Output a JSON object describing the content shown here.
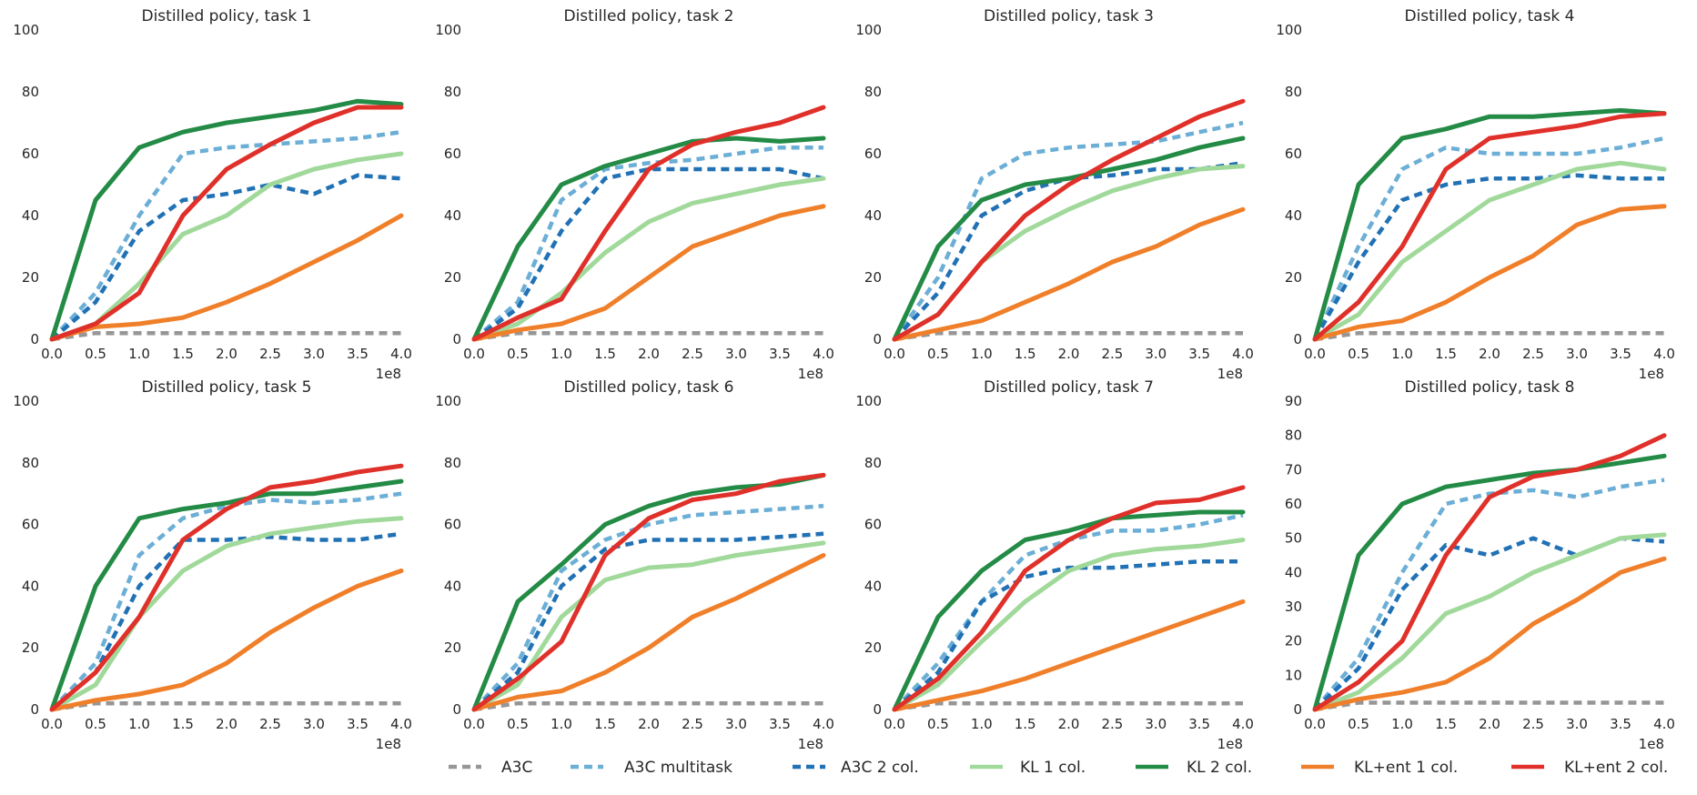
{
  "legend": {
    "placement": "bottom-right",
    "items": [
      {
        "label": "A3C",
        "color": "#969696",
        "dash": true,
        "thick": true
      },
      {
        "label": "A3C multitask",
        "color": "#6baed6",
        "dash": true,
        "thick": true
      },
      {
        "label": "A3C 2 col.",
        "color": "#2171b5",
        "dash": true,
        "thick": true
      },
      {
        "label": "KL 1 col.",
        "color": "#a1d99b",
        "dash": false,
        "thick": true
      },
      {
        "label": "KL 2 col.",
        "color": "#238b45",
        "dash": false,
        "thick": true
      },
      {
        "label": "KL+ent 1 col.",
        "color": "#f07f2a",
        "dash": false,
        "thick": true
      },
      {
        "label": "KL+ent 2 col.",
        "color": "#e0302a",
        "dash": false,
        "thick": true
      }
    ]
  },
  "chart_data": [
    {
      "type": "line",
      "title": "Distilled policy, task 1",
      "xlim": [
        0,
        4.0
      ],
      "ylim": [
        0,
        100
      ],
      "x_offset_label": "1e8",
      "x": [
        0,
        0.5,
        1.0,
        1.5,
        2.0,
        2.5,
        3.0,
        3.5,
        4.0
      ],
      "xticks": [
        "0.0",
        "0.5",
        "1.0",
        "1.5",
        "2.0",
        "2.5",
        "3.0",
        "3.5",
        "4.0"
      ],
      "yticks": [
        "0",
        "20",
        "40",
        "60",
        "80",
        "100"
      ],
      "series": [
        {
          "name": "A3C",
          "values": [
            0,
            2,
            2,
            2,
            2,
            2,
            2,
            2,
            2
          ]
        },
        {
          "name": "A3C multitask",
          "values": [
            0,
            15,
            40,
            60,
            62,
            63,
            64,
            65,
            67
          ]
        },
        {
          "name": "A3C 2 col.",
          "values": [
            0,
            12,
            35,
            45,
            47,
            50,
            47,
            53,
            52
          ]
        },
        {
          "name": "KL 1 col.",
          "values": [
            0,
            5,
            18,
            34,
            40,
            50,
            55,
            58,
            60
          ]
        },
        {
          "name": "KL 2 col.",
          "values": [
            0,
            45,
            62,
            67,
            70,
            72,
            74,
            77,
            76
          ]
        },
        {
          "name": "KL+ent 1 col.",
          "values": [
            0,
            4,
            5,
            7,
            12,
            18,
            25,
            32,
            40
          ]
        },
        {
          "name": "KL+ent 2 col.",
          "values": [
            0,
            5,
            15,
            40,
            55,
            63,
            70,
            75,
            75
          ]
        }
      ]
    },
    {
      "type": "line",
      "title": "Distilled policy, task 2",
      "xlim": [
        0,
        4.0
      ],
      "ylim": [
        0,
        100
      ],
      "x_offset_label": "1e8",
      "x": [
        0,
        0.5,
        1.0,
        1.5,
        2.0,
        2.5,
        3.0,
        3.5,
        4.0
      ],
      "xticks": [
        "0.0",
        "0.5",
        "1.0",
        "1.5",
        "2.0",
        "2.5",
        "3.0",
        "3.5",
        "4.0"
      ],
      "yticks": [
        "0",
        "20",
        "40",
        "60",
        "80",
        "100"
      ],
      "series": [
        {
          "name": "A3C",
          "values": [
            0,
            2,
            2,
            2,
            2,
            2,
            2,
            2,
            2
          ]
        },
        {
          "name": "A3C multitask",
          "values": [
            0,
            12,
            45,
            55,
            57,
            58,
            60,
            62,
            62
          ]
        },
        {
          "name": "A3C 2 col.",
          "values": [
            0,
            10,
            35,
            52,
            55,
            55,
            55,
            55,
            52
          ]
        },
        {
          "name": "KL 1 col.",
          "values": [
            0,
            5,
            15,
            28,
            38,
            44,
            47,
            50,
            52
          ]
        },
        {
          "name": "KL 2 col.",
          "values": [
            0,
            30,
            50,
            56,
            60,
            64,
            65,
            64,
            65
          ]
        },
        {
          "name": "KL+ent 1 col.",
          "values": [
            0,
            3,
            5,
            10,
            20,
            30,
            35,
            40,
            43
          ]
        },
        {
          "name": "KL+ent 2 col.",
          "values": [
            0,
            7,
            13,
            35,
            55,
            63,
            67,
            70,
            75
          ]
        }
      ]
    },
    {
      "type": "line",
      "title": "Distilled policy, task 3",
      "xlim": [
        0,
        4.0
      ],
      "ylim": [
        0,
        100
      ],
      "x_offset_label": "1e8",
      "x": [
        0,
        0.5,
        1.0,
        1.5,
        2.0,
        2.5,
        3.0,
        3.5,
        4.0
      ],
      "xticks": [
        "0.0",
        "0.5",
        "1.0",
        "1.5",
        "2.0",
        "2.5",
        "3.0",
        "3.5",
        "4.0"
      ],
      "yticks": [
        "0",
        "20",
        "40",
        "60",
        "80",
        "100"
      ],
      "series": [
        {
          "name": "A3C",
          "values": [
            0,
            2,
            2,
            2,
            2,
            2,
            2,
            2,
            2
          ]
        },
        {
          "name": "A3C multitask",
          "values": [
            0,
            20,
            52,
            60,
            62,
            63,
            64,
            67,
            70
          ]
        },
        {
          "name": "A3C 2 col.",
          "values": [
            0,
            15,
            40,
            48,
            52,
            53,
            55,
            55,
            57
          ]
        },
        {
          "name": "KL 1 col.",
          "values": [
            0,
            8,
            25,
            35,
            42,
            48,
            52,
            55,
            56
          ]
        },
        {
          "name": "KL 2 col.",
          "values": [
            0,
            30,
            45,
            50,
            52,
            55,
            58,
            62,
            65
          ]
        },
        {
          "name": "KL+ent 1 col.",
          "values": [
            0,
            3,
            6,
            12,
            18,
            25,
            30,
            37,
            42
          ]
        },
        {
          "name": "KL+ent 2 col.",
          "values": [
            0,
            8,
            25,
            40,
            50,
            58,
            65,
            72,
            77
          ]
        }
      ]
    },
    {
      "type": "line",
      "title": "Distilled policy, task 4",
      "xlim": [
        0,
        4.0
      ],
      "ylim": [
        0,
        100
      ],
      "x_offset_label": "1e8",
      "x": [
        0,
        0.5,
        1.0,
        1.5,
        2.0,
        2.5,
        3.0,
        3.5,
        4.0
      ],
      "xticks": [
        "0.0",
        "0.5",
        "1.0",
        "1.5",
        "2.0",
        "2.5",
        "3.0",
        "3.5",
        "4.0"
      ],
      "yticks": [
        "0",
        "20",
        "40",
        "60",
        "80",
        "100"
      ],
      "series": [
        {
          "name": "A3C",
          "values": [
            0,
            2,
            2,
            2,
            2,
            2,
            2,
            2,
            2
          ]
        },
        {
          "name": "A3C multitask",
          "values": [
            0,
            30,
            55,
            62,
            60,
            60,
            60,
            62,
            65
          ]
        },
        {
          "name": "A3C 2 col.",
          "values": [
            0,
            25,
            45,
            50,
            52,
            52,
            53,
            52,
            52
          ]
        },
        {
          "name": "KL 1 col.",
          "values": [
            0,
            8,
            25,
            35,
            45,
            50,
            55,
            57,
            55
          ]
        },
        {
          "name": "KL 2 col.",
          "values": [
            0,
            50,
            65,
            68,
            72,
            72,
            73,
            74,
            73
          ]
        },
        {
          "name": "KL+ent 1 col.",
          "values": [
            0,
            4,
            6,
            12,
            20,
            27,
            37,
            42,
            43
          ]
        },
        {
          "name": "KL+ent 2 col.",
          "values": [
            0,
            12,
            30,
            55,
            65,
            67,
            69,
            72,
            73
          ]
        }
      ]
    },
    {
      "type": "line",
      "title": "Distilled policy, task 5",
      "xlim": [
        0,
        4.0
      ],
      "ylim": [
        0,
        100
      ],
      "x_offset_label": "1e8",
      "x": [
        0,
        0.5,
        1.0,
        1.5,
        2.0,
        2.5,
        3.0,
        3.5,
        4.0
      ],
      "xticks": [
        "0.0",
        "0.5",
        "1.0",
        "1.5",
        "2.0",
        "2.5",
        "3.0",
        "3.5",
        "4.0"
      ],
      "yticks": [
        "0",
        "20",
        "40",
        "60",
        "80",
        "100"
      ],
      "series": [
        {
          "name": "A3C",
          "values": [
            0,
            2,
            2,
            2,
            2,
            2,
            2,
            2,
            2
          ]
        },
        {
          "name": "A3C multitask",
          "values": [
            0,
            15,
            50,
            62,
            66,
            68,
            67,
            68,
            70
          ]
        },
        {
          "name": "A3C 2 col.",
          "values": [
            0,
            12,
            40,
            55,
            55,
            56,
            55,
            55,
            57
          ]
        },
        {
          "name": "KL 1 col.",
          "values": [
            0,
            8,
            30,
            45,
            53,
            57,
            59,
            61,
            62
          ]
        },
        {
          "name": "KL 2 col.",
          "values": [
            0,
            40,
            62,
            65,
            67,
            70,
            70,
            72,
            74
          ]
        },
        {
          "name": "KL+ent 1 col.",
          "values": [
            0,
            3,
            5,
            8,
            15,
            25,
            33,
            40,
            45
          ]
        },
        {
          "name": "KL+ent 2 col.",
          "values": [
            0,
            12,
            30,
            55,
            65,
            72,
            74,
            77,
            79
          ]
        }
      ]
    },
    {
      "type": "line",
      "title": "Distilled policy, task 6",
      "xlim": [
        0,
        4.0
      ],
      "ylim": [
        0,
        100
      ],
      "x_offset_label": "1e8",
      "x": [
        0,
        0.5,
        1.0,
        1.5,
        2.0,
        2.5,
        3.0,
        3.5,
        4.0
      ],
      "xticks": [
        "0.0",
        "0.5",
        "1.0",
        "1.5",
        "2.0",
        "2.5",
        "3.0",
        "3.5",
        "4.0"
      ],
      "yticks": [
        "0",
        "20",
        "40",
        "60",
        "80",
        "100"
      ],
      "series": [
        {
          "name": "A3C",
          "values": [
            0,
            2,
            2,
            2,
            2,
            2,
            2,
            2,
            2
          ]
        },
        {
          "name": "A3C multitask",
          "values": [
            0,
            15,
            45,
            55,
            60,
            63,
            64,
            65,
            66
          ]
        },
        {
          "name": "A3C 2 col.",
          "values": [
            0,
            12,
            40,
            52,
            55,
            55,
            55,
            56,
            57
          ]
        },
        {
          "name": "KL 1 col.",
          "values": [
            0,
            8,
            30,
            42,
            46,
            47,
            50,
            52,
            54
          ]
        },
        {
          "name": "KL 2 col.",
          "values": [
            0,
            35,
            47,
            60,
            66,
            70,
            72,
            73,
            76
          ]
        },
        {
          "name": "KL+ent 1 col.",
          "values": [
            0,
            4,
            6,
            12,
            20,
            30,
            36,
            43,
            50
          ]
        },
        {
          "name": "KL+ent 2 col.",
          "values": [
            0,
            10,
            22,
            50,
            62,
            68,
            70,
            74,
            76
          ]
        }
      ]
    },
    {
      "type": "line",
      "title": "Distilled policy, task 7",
      "xlim": [
        0,
        4.0
      ],
      "ylim": [
        0,
        100
      ],
      "x_offset_label": "1e8",
      "x": [
        0,
        0.5,
        1.0,
        1.5,
        2.0,
        2.5,
        3.0,
        3.5,
        4.0
      ],
      "xticks": [
        "0.0",
        "0.5",
        "1.0",
        "1.5",
        "2.0",
        "2.5",
        "3.0",
        "3.5",
        "4.0"
      ],
      "yticks": [
        "0",
        "20",
        "40",
        "60",
        "80",
        "100"
      ],
      "series": [
        {
          "name": "A3C",
          "values": [
            0,
            2,
            2,
            2,
            2,
            2,
            2,
            2,
            2
          ]
        },
        {
          "name": "A3C multitask",
          "values": [
            0,
            15,
            35,
            50,
            55,
            58,
            58,
            60,
            63
          ]
        },
        {
          "name": "A3C 2 col.",
          "values": [
            0,
            12,
            35,
            43,
            46,
            46,
            47,
            48,
            48
          ]
        },
        {
          "name": "KL 1 col.",
          "values": [
            0,
            8,
            22,
            35,
            45,
            50,
            52,
            53,
            55
          ]
        },
        {
          "name": "KL 2 col.",
          "values": [
            0,
            30,
            45,
            55,
            58,
            62,
            63,
            64,
            64
          ]
        },
        {
          "name": "KL+ent 1 col.",
          "values": [
            0,
            3,
            6,
            10,
            15,
            20,
            25,
            30,
            35
          ]
        },
        {
          "name": "KL+ent 2 col.",
          "values": [
            0,
            10,
            25,
            45,
            55,
            62,
            67,
            68,
            72
          ]
        }
      ]
    },
    {
      "type": "line",
      "title": "Distilled policy, task 8",
      "xlim": [
        0,
        4.0
      ],
      "ylim": [
        0,
        90
      ],
      "x_offset_label": "1e8",
      "x": [
        0,
        0.5,
        1.0,
        1.5,
        2.0,
        2.5,
        3.0,
        3.5,
        4.0
      ],
      "xticks": [
        "0.0",
        "0.5",
        "1.0",
        "1.5",
        "2.0",
        "2.5",
        "3.0",
        "3.5",
        "4.0"
      ],
      "yticks": [
        "0",
        "10",
        "20",
        "30",
        "40",
        "50",
        "60",
        "70",
        "80",
        "90"
      ],
      "series": [
        {
          "name": "A3C",
          "values": [
            0,
            2,
            2,
            2,
            2,
            2,
            2,
            2,
            2
          ]
        },
        {
          "name": "A3C multitask",
          "values": [
            0,
            15,
            40,
            60,
            63,
            64,
            62,
            65,
            67
          ]
        },
        {
          "name": "A3C 2 col.",
          "values": [
            0,
            12,
            35,
            48,
            45,
            50,
            45,
            50,
            49
          ]
        },
        {
          "name": "KL 1 col.",
          "values": [
            0,
            5,
            15,
            28,
            33,
            40,
            45,
            50,
            51
          ]
        },
        {
          "name": "KL 2 col.",
          "values": [
            0,
            45,
            60,
            65,
            67,
            69,
            70,
            72,
            74
          ]
        },
        {
          "name": "KL+ent 1 col.",
          "values": [
            0,
            3,
            5,
            8,
            15,
            25,
            32,
            40,
            44
          ]
        },
        {
          "name": "KL+ent 2 col.",
          "values": [
            0,
            8,
            20,
            45,
            62,
            68,
            70,
            74,
            80
          ]
        }
      ]
    }
  ]
}
